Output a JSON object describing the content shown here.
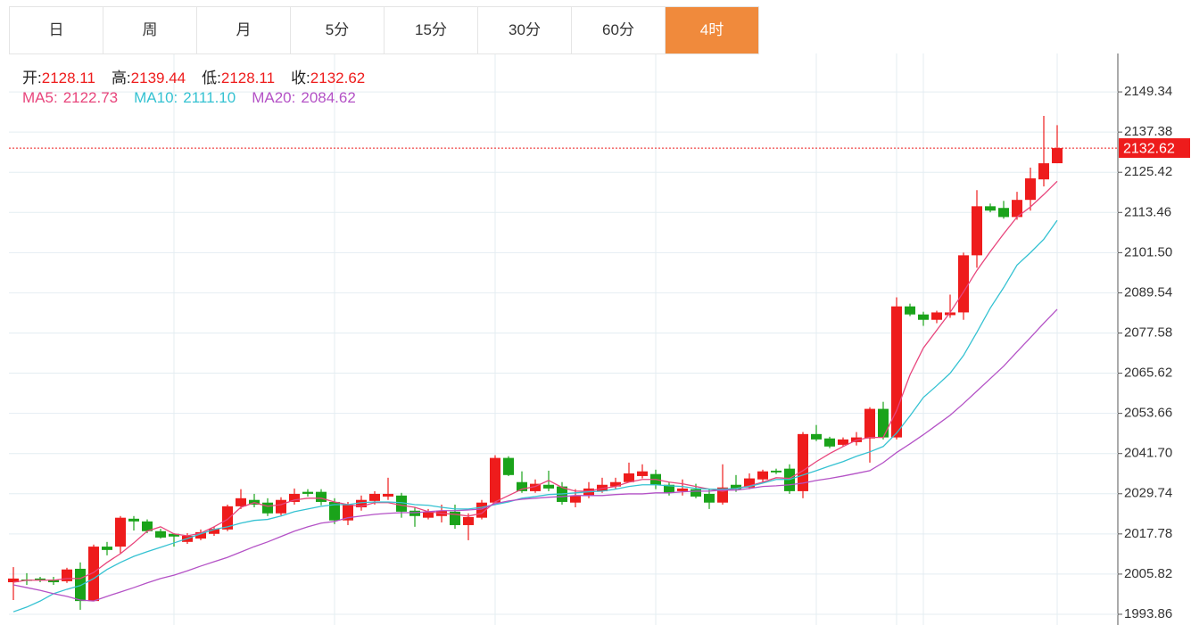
{
  "tabs": [
    "日",
    "周",
    "月",
    "5分",
    "15分",
    "30分",
    "60分",
    "4时"
  ],
  "active_tab": 7,
  "chart_data": {
    "type": "candlestick",
    "ohlc_info": [
      {
        "label": "开:",
        "value": "2128.11"
      },
      {
        "label": "高:",
        "value": "2139.44"
      },
      {
        "label": "低:",
        "value": "2128.11"
      },
      {
        "label": "收:",
        "value": "2132.62"
      }
    ],
    "up_color": "#ee1c1c",
    "down_color": "#1aa31a",
    "ylim": [
      1990.67,
      2160.77
    ],
    "yticks": [
      2149.34,
      2137.38,
      2125.42,
      2113.46,
      {
        "value": 2101.5,
        "label": "2101.50"
      },
      2089.54,
      2077.58,
      2065.62,
      2053.66,
      {
        "value": 2041.7,
        "label": "2041.70"
      },
      2029.74,
      2017.78,
      2005.82,
      1993.86
    ],
    "grid": true,
    "last_price": {
      "value": 2132.62,
      "label": "2132.62"
    },
    "ohlc": [
      [
        2003.4,
        2007.9,
        1998.1,
        2004.5
      ],
      [
        2004.2,
        2006.1,
        2002.6,
        2004.0
      ],
      [
        2004.5,
        2005.0,
        2003.4,
        2004.0
      ],
      [
        2004.2,
        2005.0,
        2002.6,
        2003.4
      ],
      [
        2003.7,
        2007.7,
        2003.2,
        2007.2
      ],
      [
        2007.4,
        2009.3,
        1995.2,
        1997.8
      ],
      [
        1997.8,
        2014.6,
        1997.8,
        2014.0
      ],
      [
        2014.0,
        2015.4,
        2011.4,
        2013.0
      ],
      [
        2014.0,
        2023.1,
        2011.9,
        2022.6
      ],
      [
        2022.3,
        2023.1,
        2018.8,
        2021.5
      ],
      [
        2021.5,
        2022.1,
        2018.0,
        2018.6
      ],
      [
        2018.6,
        2019.3,
        2016.4,
        2016.7
      ],
      [
        2017.8,
        2018.0,
        2014.0,
        2017.0
      ],
      [
        2015.4,
        2018.0,
        2014.8,
        2017.2
      ],
      [
        2016.4,
        2019.1,
        2015.9,
        2018.3
      ],
      [
        2017.8,
        2019.9,
        2017.2,
        2019.3
      ],
      [
        2019.1,
        2026.5,
        2018.6,
        2026.0
      ],
      [
        2026.0,
        2031.1,
        2025.2,
        2028.4
      ],
      [
        2027.9,
        2029.7,
        2025.7,
        2026.5
      ],
      [
        2027.1,
        2028.4,
        2023.1,
        2023.9
      ],
      [
        2023.9,
        2028.7,
        2023.3,
        2027.9
      ],
      [
        2027.3,
        2031.3,
        2026.5,
        2029.7
      ],
      [
        2030.3,
        2031.1,
        2028.9,
        2029.7
      ],
      [
        2030.3,
        2031.1,
        2026.3,
        2027.3
      ],
      [
        2027.3,
        2028.4,
        2020.7,
        2021.8
      ],
      [
        2021.8,
        2027.3,
        2020.4,
        2026.5
      ],
      [
        2025.7,
        2029.2,
        2024.7,
        2027.9
      ],
      [
        2027.6,
        2030.5,
        2026.5,
        2029.7
      ],
      [
        2028.9,
        2034.5,
        2027.9,
        2029.7
      ],
      [
        2029.2,
        2030.0,
        2022.6,
        2024.4
      ],
      [
        2024.7,
        2025.7,
        2019.9,
        2023.1
      ],
      [
        2022.6,
        2025.2,
        2022.1,
        2024.4
      ],
      [
        2023.1,
        2026.5,
        2021.2,
        2024.7
      ],
      [
        2024.4,
        2026.5,
        2019.3,
        2020.4
      ],
      [
        2020.4,
        2023.9,
        2015.9,
        2022.8
      ],
      [
        2022.6,
        2027.9,
        2022.1,
        2027.1
      ],
      [
        2027.1,
        2041.2,
        2027.1,
        2040.4
      ],
      [
        2040.4,
        2040.9,
        2035.0,
        2035.3
      ],
      [
        2033.2,
        2036.4,
        2030.0,
        2030.5
      ],
      [
        2030.5,
        2034.0,
        2030.0,
        2032.7
      ],
      [
        2032.4,
        2036.6,
        2030.5,
        2031.3
      ],
      [
        2031.9,
        2033.2,
        2026.5,
        2027.3
      ],
      [
        2027.1,
        2031.1,
        2025.7,
        2029.2
      ],
      [
        2029.2,
        2033.2,
        2028.4,
        2031.3
      ],
      [
        2030.5,
        2034.5,
        2030.0,
        2032.4
      ],
      [
        2031.9,
        2034.5,
        2031.1,
        2033.2
      ],
      [
        2033.2,
        2039.0,
        2033.2,
        2035.8
      ],
      [
        2035.0,
        2038.5,
        2034.3,
        2036.4
      ],
      [
        2035.6,
        2036.9,
        2031.1,
        2032.4
      ],
      [
        2032.4,
        2033.2,
        2029.2,
        2030.0
      ],
      [
        2030.5,
        2034.0,
        2029.2,
        2031.3
      ],
      [
        2031.1,
        2032.7,
        2028.4,
        2028.9
      ],
      [
        2029.7,
        2031.3,
        2025.2,
        2027.1
      ],
      [
        2027.1,
        2038.5,
        2026.5,
        2031.6
      ],
      [
        2032.4,
        2035.3,
        2030.3,
        2031.1
      ],
      [
        2031.6,
        2035.8,
        2031.1,
        2034.3
      ],
      [
        2034.0,
        2036.9,
        2033.2,
        2036.4
      ],
      [
        2036.6,
        2037.2,
        2035.6,
        2036.1
      ],
      [
        2037.2,
        2038.5,
        2029.7,
        2030.5
      ],
      [
        2030.5,
        2048.1,
        2028.4,
        2047.5
      ],
      [
        2047.5,
        2050.2,
        2045.4,
        2045.9
      ],
      [
        2046.2,
        2046.7,
        2043.3,
        2043.8
      ],
      [
        2044.3,
        2046.5,
        2043.8,
        2045.9
      ],
      [
        2045.1,
        2048.1,
        2044.1,
        2046.5
      ],
      [
        2046.2,
        2055.5,
        2039.0,
        2055.0
      ],
      [
        2055.0,
        2057.1,
        2045.9,
        2046.5
      ],
      [
        2046.5,
        2088.2,
        2045.9,
        2085.5
      ],
      [
        2085.5,
        2086.3,
        2082.6,
        2083.1
      ],
      [
        2083.1,
        2083.9,
        2079.7,
        2081.5
      ],
      [
        2081.5,
        2084.2,
        2080.5,
        2083.7
      ],
      [
        2082.9,
        2089.0,
        2082.1,
        2083.7
      ],
      [
        2083.7,
        2101.5,
        2081.5,
        2100.7
      ],
      [
        2100.7,
        2120.1,
        2097.0,
        2115.3
      ],
      [
        2115.3,
        2116.1,
        2113.5,
        2114.0
      ],
      [
        2114.8,
        2116.9,
        2111.6,
        2112.1
      ],
      [
        2112.1,
        2119.6,
        2111.3,
        2117.2
      ],
      [
        2117.2,
        2126.8,
        2114.0,
        2123.6
      ],
      [
        2123.3,
        2142.2,
        2121.2,
        2128.1
      ],
      [
        2128.11,
        2139.44,
        2128.11,
        2132.62
      ]
    ],
    "series": [
      {
        "name": "MA5:",
        "label": "2122.73",
        "color": "#e8457c",
        "values": [
          2003.4,
          2004.0,
          2004.0,
          2004.0,
          2004.5,
          2004.5,
          2006.3,
          2009.3,
          2011.9,
          2015.1,
          2018.6,
          2019.9,
          2017.8,
          2017.2,
          2018.0,
          2019.9,
          2022.1,
          2025.7,
          2027.1,
          2026.0,
          2026.5,
          2027.9,
          2028.4,
          2028.4,
          2027.3,
          2026.5,
          2026.0,
          2027.1,
          2027.1,
          2026.3,
          2025.7,
          2024.4,
          2023.9,
          2023.6,
          2023.1,
          2023.9,
          2027.3,
          2029.2,
          2031.1,
          2031.9,
          2033.7,
          2031.6,
          2030.5,
          2030.5,
          2031.3,
          2031.9,
          2033.2,
          2034.0,
          2034.0,
          2033.2,
          2032.7,
          2031.9,
          2031.1,
          2030.5,
          2031.3,
          2032.1,
          2033.2,
          2034.5,
          2034.3,
          2036.6,
          2039.3,
          2041.7,
          2043.8,
          2045.7,
          2046.5,
          2046.5,
          2054.5,
          2065.1,
          2073.1,
          2078.4,
          2083.7,
          2089.8,
          2096.2,
          2101.8,
          2107.1,
          2112.1,
          2115.1,
          2118.8,
          2122.73
        ]
      },
      {
        "name": "MA10:",
        "label": "2111.10",
        "color": "#35c2d2",
        "values": [
          1994.6,
          1996.0,
          1997.8,
          2000.0,
          2001.3,
          2002.4,
          2004.5,
          2007.2,
          2009.3,
          2011.1,
          2012.5,
          2013.8,
          2015.1,
          2016.4,
          2017.8,
          2019.1,
          2019.9,
          2021.0,
          2021.8,
          2022.1,
          2023.1,
          2024.4,
          2025.2,
          2026.0,
          2026.5,
          2026.5,
          2027.1,
          2027.3,
          2027.3,
          2027.1,
          2026.5,
          2026.3,
          2025.7,
          2025.2,
          2025.2,
          2025.7,
          2026.5,
          2027.3,
          2028.4,
          2028.9,
          2029.5,
          2029.7,
          2030.0,
          2030.3,
          2030.5,
          2031.1,
          2031.9,
          2032.4,
          2032.4,
          2032.1,
          2031.9,
          2031.3,
          2031.1,
          2031.1,
          2031.3,
          2031.9,
          2032.9,
          2034.0,
          2034.0,
          2035.3,
          2036.6,
          2038.0,
          2039.3,
          2040.9,
          2042.2,
          2043.8,
          2047.8,
          2052.9,
          2058.4,
          2061.9,
          2065.6,
          2070.9,
          2077.8,
          2085.0,
          2091.1,
          2097.8,
          2101.5,
          2105.5,
          2111.1
        ]
      },
      {
        "name": "MA20:",
        "label": "2084.62",
        "color": "#b452c6",
        "values": [
          2002.6,
          2001.8,
          2001.0,
          2000.0,
          1999.2,
          1998.1,
          1997.8,
          1999.2,
          2000.5,
          2001.8,
          2003.2,
          2004.5,
          2005.5,
          2006.8,
          2008.2,
          2009.5,
          2010.8,
          2012.4,
          2014.0,
          2015.4,
          2017.0,
          2018.6,
          2019.9,
          2021.0,
          2021.5,
          2022.6,
          2023.1,
          2023.6,
          2023.9,
          2024.1,
          2024.1,
          2024.4,
          2024.7,
          2024.7,
          2024.9,
          2025.2,
          2026.8,
          2027.6,
          2028.1,
          2028.4,
          2028.7,
          2028.9,
          2029.2,
          2029.2,
          2029.2,
          2029.5,
          2029.7,
          2029.7,
          2030.0,
          2030.0,
          2030.3,
          2030.5,
          2030.5,
          2030.8,
          2030.8,
          2031.3,
          2031.9,
          2032.1,
          2032.4,
          2032.9,
          2033.7,
          2034.3,
          2035.0,
          2035.8,
          2036.6,
          2039.0,
          2042.0,
          2044.6,
          2047.3,
          2050.2,
          2053.1,
          2056.6,
          2060.3,
          2064.0,
          2067.7,
          2072.0,
          2076.2,
          2080.5,
          2084.62
        ]
      }
    ]
  }
}
